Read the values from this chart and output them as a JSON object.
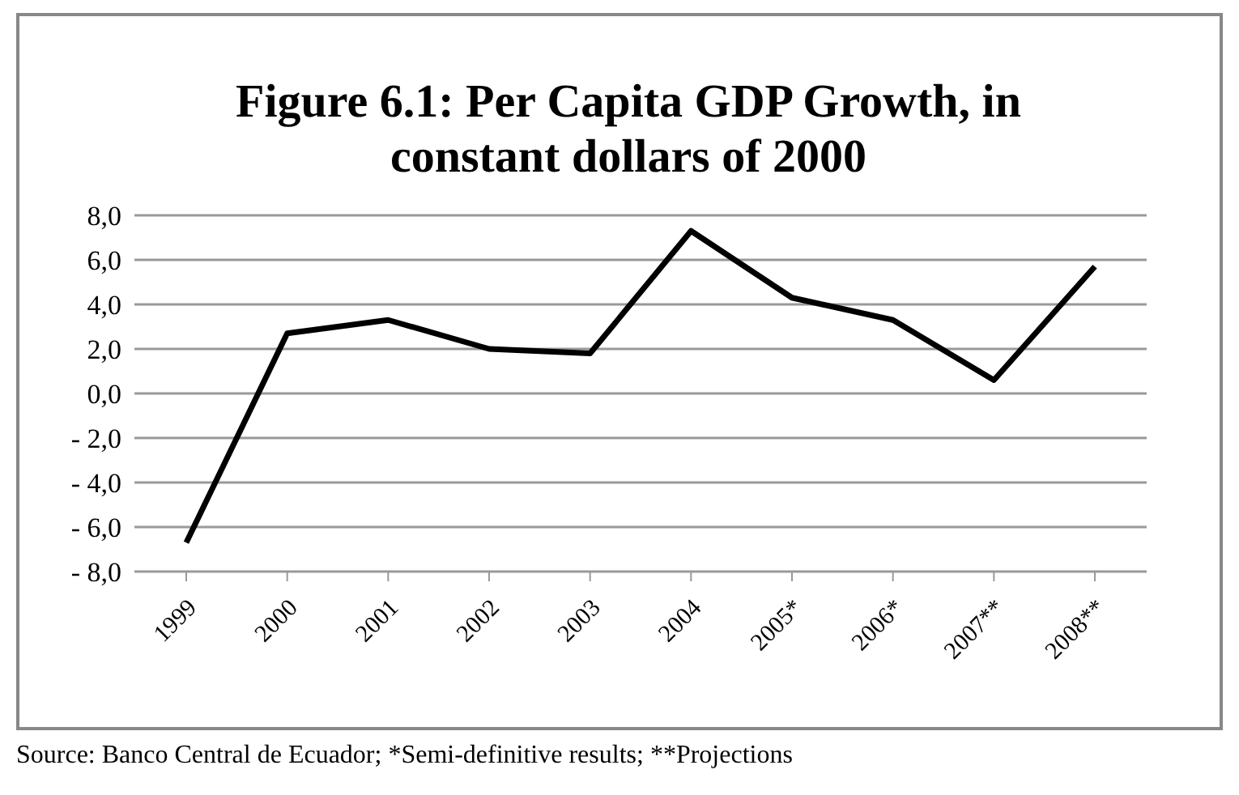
{
  "chart_data": {
    "type": "line",
    "title": "Figure 6.1: Per Capita GDP Growth, in constant dollars of 2000",
    "categories": [
      "1999",
      "2000",
      "2001",
      "2002",
      "2003",
      "2004",
      "2005*",
      "2006*",
      "2007**",
      "2008**"
    ],
    "series": [
      {
        "color": "#000000",
        "values": [
          -6.7,
          2.7,
          3.3,
          2.0,
          1.8,
          7.3,
          4.3,
          3.3,
          0.6,
          5.7
        ]
      }
    ],
    "ylim": [
      -8,
      8
    ],
    "yticks": [
      {
        "value": -8,
        "label": "- 8,0"
      },
      {
        "value": -6,
        "label": "- 6,0"
      },
      {
        "value": -4,
        "label": "- 4,0"
      },
      {
        "value": -2,
        "label": "- 2,0"
      },
      {
        "value": 0,
        "label": "0,0"
      },
      {
        "value": 2,
        "label": "2,0"
      },
      {
        "value": 4,
        "label": "4,0"
      },
      {
        "value": 6,
        "label": "6,0"
      },
      {
        "value": 8,
        "label": "8,0"
      }
    ],
    "grid": "y",
    "legend": false,
    "marker": "none",
    "line_style": "solid",
    "annotations": [
      "Source: Banco Central de Ecuador; *Semi-definitive results; **Projections"
    ]
  }
}
